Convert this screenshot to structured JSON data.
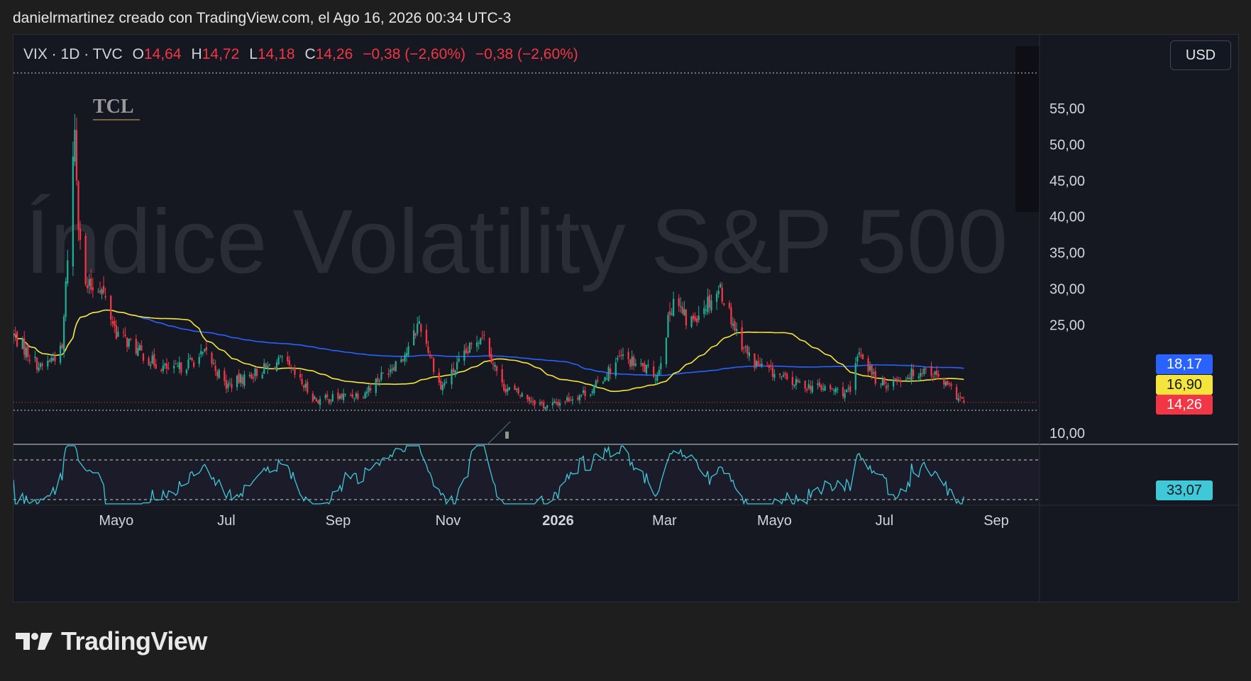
{
  "header": {
    "attribution": "danielrmartinez creado con TradingView.com, el Ago 16, 2026 00:34 UTC-3"
  },
  "legend": {
    "symbol": "VIX · 1D · TVC",
    "open_key": "O",
    "open": "14,64",
    "high_key": "H",
    "high": "14,72",
    "low_key": "L",
    "low": "14,18",
    "close_key": "C",
    "close": "14,26",
    "change1": "−0,38 (−2,60%)",
    "change2": "−0,38 (−2,60%)"
  },
  "currency": "USD",
  "watermark": "Índice Volatility S&P 500",
  "broker_logo": "TCL",
  "footer": {
    "brand": "TradingView"
  },
  "price_tags": {
    "ma_blue": "18,17",
    "ma_yellow": "16,90",
    "last": "14,26",
    "rsi": "33,07"
  },
  "colors": {
    "up": "#22ab94",
    "down": "#f23645",
    "ma_fast": "#f5e53b",
    "ma_slow": "#2962ff",
    "rsi": "#3fc8d8",
    "background": "#151821"
  },
  "chart_data": {
    "type": "candlestick",
    "symbol": "VIX",
    "interval": "1D",
    "y_axis": {
      "ticks": [
        "55,00",
        "50,00",
        "45,00",
        "40,00",
        "35,00",
        "30,00",
        "25,00",
        "10,00"
      ],
      "tick_values": [
        55,
        50,
        45,
        40,
        35,
        30,
        25,
        10
      ],
      "range": [
        9,
        60
      ]
    },
    "x_axis": {
      "ticks": [
        "Mayo",
        "Jul",
        "Sep",
        "Nov",
        "2026",
        "Mar",
        "Mayo",
        "Jul",
        "Sep"
      ],
      "tick_dates": [
        "2025-05-01",
        "2025-07-01",
        "2025-09-01",
        "2025-11-01",
        "2026-01-01",
        "2026-03-01",
        "2026-05-01",
        "2026-07-01",
        "2026-09-01"
      ],
      "range": [
        "2025-03-05",
        "2026-09-25"
      ]
    },
    "key_points": [
      {
        "date": "2025-03-05",
        "close": 23.5
      },
      {
        "date": "2025-03-20",
        "close": 19.0
      },
      {
        "date": "2025-04-01",
        "close": 21.5
      },
      {
        "date": "2025-04-08",
        "close": 52.3
      },
      {
        "date": "2025-04-10",
        "close": 40.0
      },
      {
        "date": "2025-04-14",
        "close": 30.0
      },
      {
        "date": "2025-04-22",
        "close": 30.5
      },
      {
        "date": "2025-05-01",
        "close": 24.0
      },
      {
        "date": "2025-05-20",
        "close": 20.0
      },
      {
        "date": "2025-06-01",
        "close": 18.5
      },
      {
        "date": "2025-06-20",
        "close": 21.0
      },
      {
        "date": "2025-07-01",
        "close": 16.5
      },
      {
        "date": "2025-08-01",
        "close": 20.0
      },
      {
        "date": "2025-08-20",
        "close": 14.5
      },
      {
        "date": "2025-09-15",
        "close": 15.5
      },
      {
        "date": "2025-10-10",
        "close": 21.5
      },
      {
        "date": "2025-10-16",
        "close": 25.5
      },
      {
        "date": "2025-10-28",
        "close": 16.2
      },
      {
        "date": "2025-11-20",
        "close": 24.0
      },
      {
        "date": "2025-12-01",
        "close": 16.5
      },
      {
        "date": "2025-12-26",
        "close": 13.6
      },
      {
        "date": "2026-01-20",
        "close": 16.0
      },
      {
        "date": "2026-02-05",
        "close": 20.5
      },
      {
        "date": "2026-02-25",
        "close": 18.0
      },
      {
        "date": "2026-03-06",
        "close": 29.0
      },
      {
        "date": "2026-03-14",
        "close": 25.0
      },
      {
        "date": "2026-03-24",
        "close": 28.0
      },
      {
        "date": "2026-04-01",
        "close": 30.0
      },
      {
        "date": "2026-04-10",
        "close": 24.0
      },
      {
        "date": "2026-04-18",
        "close": 20.0
      },
      {
        "date": "2026-05-10",
        "close": 17.0
      },
      {
        "date": "2026-06-12",
        "close": 15.5
      },
      {
        "date": "2026-06-17",
        "close": 21.5
      },
      {
        "date": "2026-06-28",
        "close": 16.5
      },
      {
        "date": "2026-07-25",
        "close": 19.0
      },
      {
        "date": "2026-08-14",
        "close": 14.26
      }
    ],
    "moving_averages": [
      {
        "color": "#f5e53b",
        "last": 16.9
      },
      {
        "color": "#2962ff",
        "last": 18.17
      }
    ],
    "last_close": 14.26,
    "rsi": {
      "last": 33.07
    }
  }
}
